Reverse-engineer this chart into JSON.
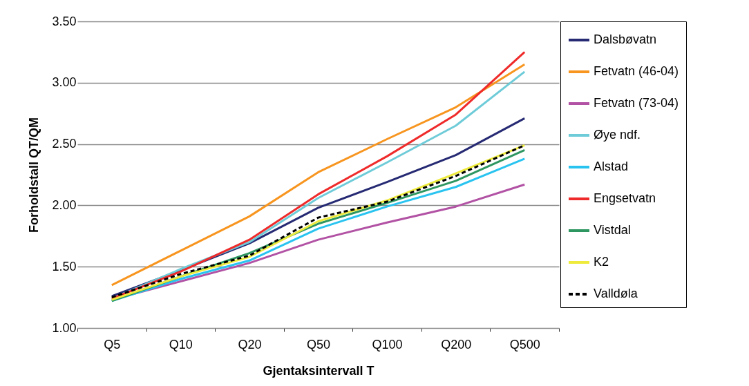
{
  "chart_data": {
    "type": "line",
    "xlabel": "Gjentaksintervall T",
    "ylabel": "Forholdstall QT/QM",
    "categories": [
      "Q5",
      "Q10",
      "Q20",
      "Q50",
      "Q100",
      "Q200",
      "Q500"
    ],
    "ylim": [
      1.0,
      3.5
    ],
    "yticks": [
      {
        "value": 1.0,
        "label": "1.00"
      },
      {
        "value": 1.5,
        "label": "1.50"
      },
      {
        "value": 2.0,
        "label": "2.00"
      },
      {
        "value": 2.5,
        "label": "2.50"
      },
      {
        "value": 3.0,
        "label": "3.00"
      },
      {
        "value": 3.5,
        "label": "3.50"
      }
    ],
    "grid": "y",
    "legend": "right",
    "marker": "none",
    "line_style": "solid",
    "series": [
      {
        "name": "Dalsbøvatn",
        "color": "#262a73",
        "values": [
          1.26,
          1.47,
          1.69,
          1.98,
          2.19,
          2.41,
          2.71
        ]
      },
      {
        "name": "Fetvatn (46-04)",
        "color": "#f7951f",
        "values": [
          1.35,
          1.63,
          1.91,
          2.27,
          2.54,
          2.8,
          3.15
        ]
      },
      {
        "name": "Fetvatn (73-04)",
        "color": "#b252a4",
        "values": [
          1.23,
          1.38,
          1.53,
          1.72,
          1.86,
          1.99,
          2.17
        ]
      },
      {
        "name": "Øye ndf.",
        "color": "#6ecbd8",
        "values": [
          1.24,
          1.48,
          1.7,
          2.06,
          2.35,
          2.65,
          3.09
        ]
      },
      {
        "name": "Alstad",
        "color": "#29c3f0",
        "values": [
          1.22,
          1.4,
          1.55,
          1.81,
          1.99,
          2.15,
          2.38
        ]
      },
      {
        "name": "Engsetvatn",
        "color": "#ef2a2a",
        "values": [
          1.24,
          1.46,
          1.72,
          2.09,
          2.4,
          2.74,
          3.25
        ]
      },
      {
        "name": "Vistdal",
        "color": "#2e9660",
        "values": [
          1.22,
          1.42,
          1.61,
          1.85,
          2.02,
          2.2,
          2.45
        ]
      },
      {
        "name": "K2",
        "color": "#eeeb3d",
        "values": [
          1.23,
          1.42,
          1.58,
          1.87,
          2.04,
          2.26,
          2.49
        ]
      },
      {
        "name": "Valldøla",
        "color": "#000000",
        "line_style": "dashed",
        "values": [
          1.25,
          1.44,
          1.59,
          1.9,
          2.03,
          2.24,
          2.49
        ]
      }
    ]
  }
}
